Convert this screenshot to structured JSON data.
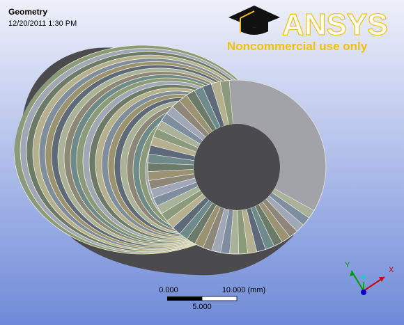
{
  "header": {
    "title": "Geometry",
    "timestamp": "12/20/2011 1:30 PM"
  },
  "logo": {
    "brand": "ANSYS",
    "notice": "Noncommercial use only"
  },
  "scale_bar": {
    "left_label": "0.000",
    "right_label": "10.000 (mm)",
    "mid_label": "5.000"
  },
  "triad": {
    "x_label": "X",
    "y_label": "Y"
  }
}
